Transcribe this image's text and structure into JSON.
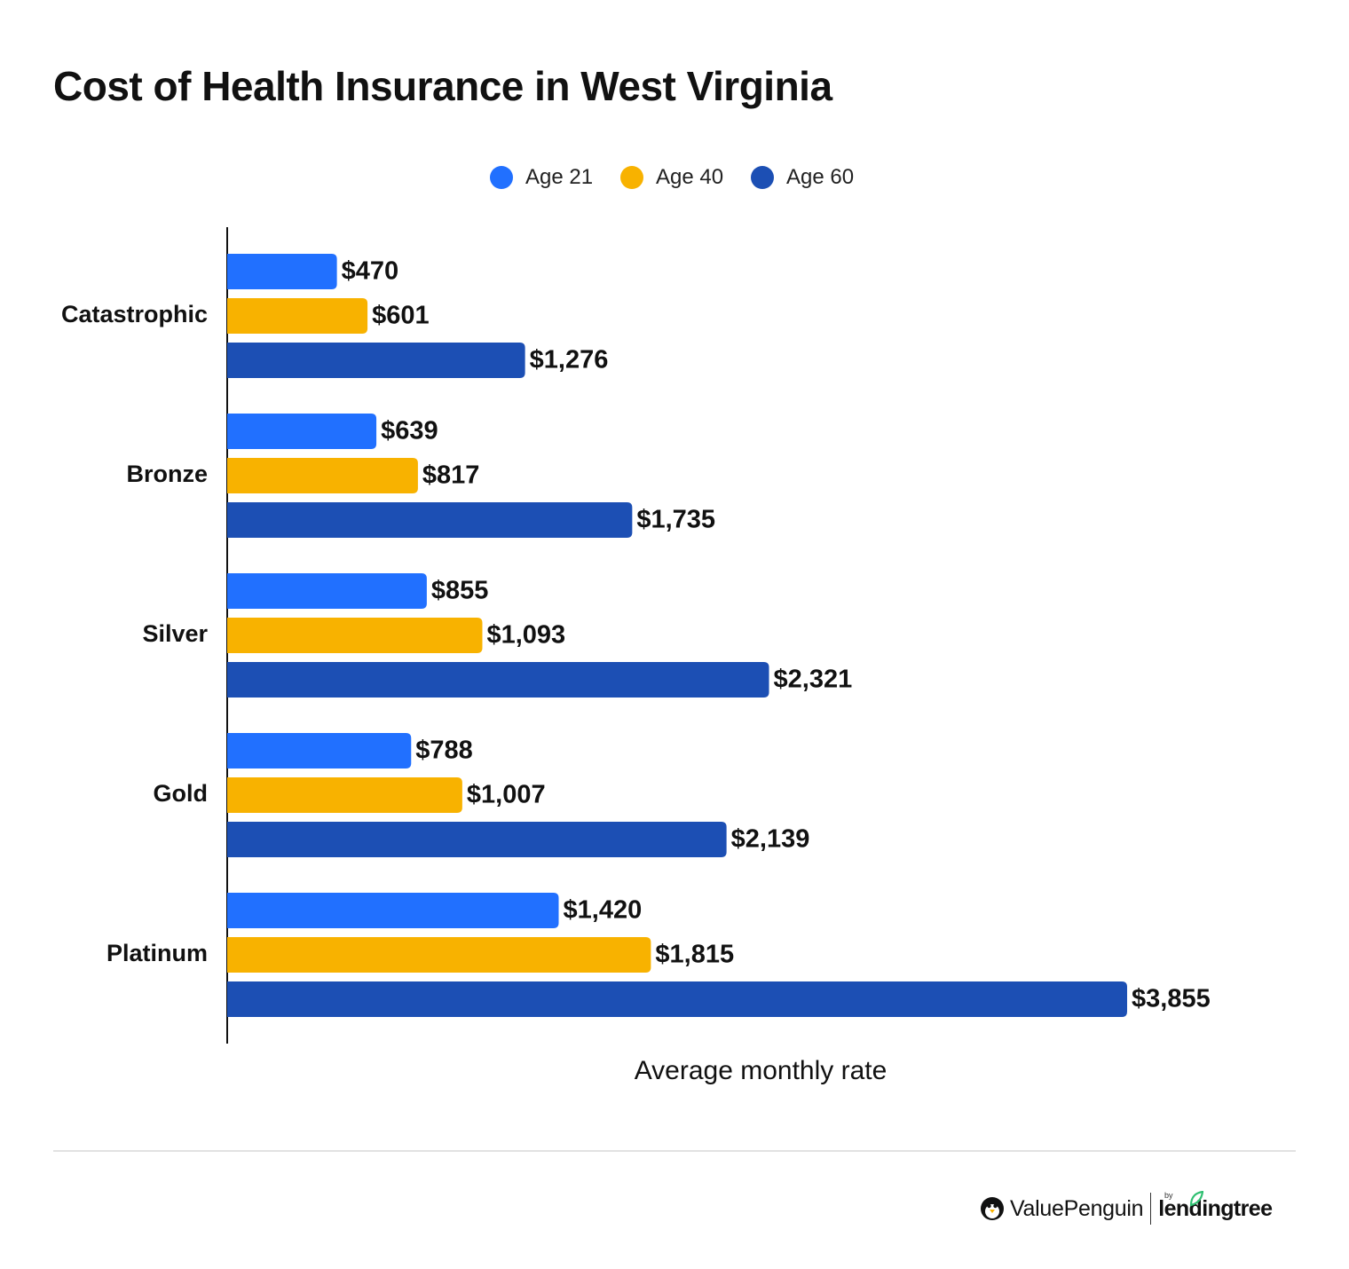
{
  "title": "Cost of Health Insurance in West Virginia",
  "chart_data": {
    "type": "bar",
    "orientation": "horizontal",
    "title": "Cost of Health Insurance in West Virginia",
    "xlabel": "Average monthly rate",
    "ylabel": "",
    "categories": [
      "Catastrophic",
      "Bronze",
      "Silver",
      "Gold",
      "Platinum"
    ],
    "series": [
      {
        "name": "Age 21",
        "color": "#2170FF",
        "values": [
          470,
          639,
          855,
          788,
          1420
        ],
        "labels": [
          "$470",
          "$639",
          "$855",
          "$788",
          "$1,420"
        ]
      },
      {
        "name": "Age 40",
        "color": "#F8B200",
        "values": [
          601,
          817,
          1093,
          1007,
          1815
        ],
        "labels": [
          "$601",
          "$817",
          "$1,093",
          "$1,007",
          "$1,815"
        ]
      },
      {
        "name": "Age 60",
        "color": "#1C4FB4",
        "values": [
          1276,
          1735,
          2321,
          2139,
          3855
        ],
        "labels": [
          "$1,276",
          "$1,735",
          "$2,321",
          "$2,139",
          "$3,855"
        ]
      }
    ],
    "xlim": [
      0,
      3855
    ],
    "grid": false,
    "legend_position": "top-center"
  },
  "branding": {
    "logo_text": "ValuePenguin",
    "by_text": "by",
    "partner_text": "lendingtree",
    "penguin_icon": "penguin-icon",
    "leaf_icon": "leaf-icon"
  }
}
